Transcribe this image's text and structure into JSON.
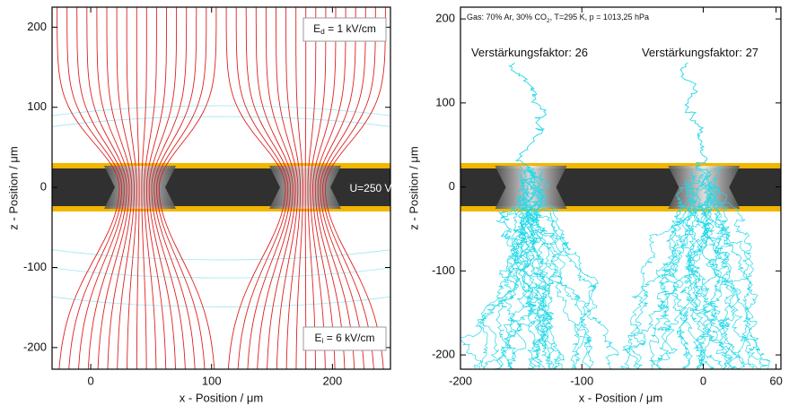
{
  "chart_data": [
    {
      "type": "field",
      "xlabel": "x - Position / μm",
      "ylabel": "z - Position / μm",
      "xlim": [
        -32,
        248
      ],
      "ylim": [
        -227,
        225
      ],
      "xticks": [
        0,
        100,
        200
      ],
      "yticks": [
        -200,
        -100,
        0,
        100,
        200
      ],
      "annotations": [
        {
          "text": "E",
          "sub": "d",
          "rest": " = 1 kV/cm"
        },
        {
          "text": "U=250 V"
        },
        {
          "text": "E",
          "sub": "i",
          "rest": " = 6 kV/cm"
        }
      ]
    },
    {
      "type": "avalanche",
      "xlabel": "x - Position / μm",
      "ylabel": "z - Position / μm",
      "xlim": [
        -200,
        64
      ],
      "ylim": [
        -217,
        214
      ],
      "xticks": [
        -200,
        -100,
        0,
        60
      ],
      "yticks": [
        -200,
        -100,
        0,
        100,
        200
      ],
      "annotations": [
        {
          "text": "Gas: 70% Ar, 30% CO",
          "sub": "2",
          "rest": ", T=295 K, p = 1013,25 hPa"
        },
        {
          "text": "Verstärkungsfaktor: 26"
        },
        {
          "text": "Verstärkungsfaktor: 27"
        }
      ]
    }
  ]
}
